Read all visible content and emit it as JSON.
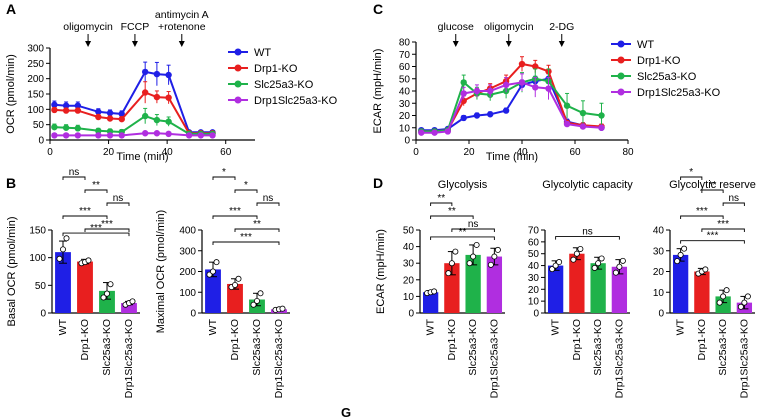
{
  "colors": {
    "WT": "#1f1fe6",
    "Drp1-KO": "#e81f1f",
    "Slc25a3-KO": "#1fb24a",
    "Drp1Slc25a3-KO": "#b02ee0"
  },
  "series_names": [
    "WT",
    "Drp1-KO",
    "Slc25a3-KO",
    "Drp1Slc25a3-KO"
  ],
  "sig": {
    "ns": "ns",
    "s1": "*",
    "s2": "**",
    "s3": "***"
  },
  "chart_data": [
    {
      "id": "A",
      "panel_label": "A",
      "type": "line",
      "ylabel": "OCR (pmol/min)",
      "xlabel": "Time (min)",
      "xlim": [
        0,
        70
      ],
      "ylim": [
        0,
        300
      ],
      "xticks": [
        0,
        20,
        40,
        60
      ],
      "yticks": [
        0,
        50,
        100,
        150,
        200,
        250,
        300
      ],
      "injections": [
        {
          "label": "oligomycin",
          "x": 13
        },
        {
          "label": "FCCP",
          "x": 29
        },
        {
          "label": "antimycin A",
          "label2": "+rotenone",
          "x": 45
        }
      ],
      "x": [
        1.5,
        5.5,
        9.5,
        16.5,
        20.5,
        24.5,
        32.5,
        36.5,
        40.5,
        47.5,
        51.5,
        55.5
      ],
      "series": [
        {
          "name": "WT",
          "values": [
            115,
            112,
            112,
            92,
            88,
            85,
            222,
            215,
            212,
            25,
            25,
            25
          ],
          "err": [
            12,
            12,
            12,
            10,
            10,
            10,
            32,
            38,
            32,
            5,
            5,
            5
          ]
        },
        {
          "name": "Drp1-KO",
          "values": [
            98,
            96,
            96,
            75,
            70,
            68,
            155,
            140,
            138,
            22,
            22,
            22
          ],
          "err": [
            8,
            8,
            8,
            8,
            8,
            8,
            35,
            20,
            20,
            4,
            4,
            4
          ]
        },
        {
          "name": "Slc25a3-KO",
          "values": [
            42,
            40,
            38,
            30,
            28,
            26,
            78,
            65,
            60,
            20,
            20,
            20
          ],
          "err": [
            10,
            10,
            10,
            8,
            8,
            8,
            25,
            18,
            15,
            4,
            4,
            4
          ]
        },
        {
          "name": "Drp1Slc25a3-KO",
          "values": [
            15,
            15,
            15,
            15,
            15,
            15,
            22,
            22,
            20,
            15,
            15,
            15
          ],
          "err": [
            4,
            4,
            4,
            4,
            4,
            4,
            5,
            5,
            5,
            3,
            3,
            3
          ]
        }
      ]
    },
    {
      "id": "C",
      "panel_label": "C",
      "type": "line",
      "ylabel": "ECAR (mpH/min)",
      "xlabel": "Time (min)",
      "xlim": [
        0,
        80
      ],
      "ylim": [
        0,
        80
      ],
      "xticks": [
        0,
        20,
        40,
        60,
        80
      ],
      "yticks": [
        0,
        10,
        20,
        30,
        40,
        50,
        60,
        70,
        80
      ],
      "injections": [
        {
          "label": "glucose",
          "x": 15
        },
        {
          "label": "oligomycin",
          "x": 35
        },
        {
          "label": "2-DG",
          "x": 55
        }
      ],
      "x": [
        2,
        7,
        12,
        18,
        23,
        28,
        34,
        40,
        45,
        50,
        57,
        63,
        70
      ],
      "series": [
        {
          "name": "WT",
          "values": [
            8,
            8,
            9,
            18,
            20,
            21,
            24,
            45,
            48,
            50,
            15,
            12,
            10
          ],
          "err": [
            1,
            1,
            1,
            2,
            2,
            2,
            2,
            4,
            4,
            4,
            2,
            2,
            2
          ]
        },
        {
          "name": "Drp1-KO",
          "values": [
            7,
            7,
            8,
            32,
            38,
            42,
            48,
            62,
            60,
            56,
            14,
            12,
            11
          ],
          "err": [
            1,
            1,
            1,
            4,
            4,
            4,
            5,
            6,
            5,
            5,
            2,
            2,
            2
          ]
        },
        {
          "name": "Slc25a3-KO",
          "values": [
            7,
            7,
            8,
            47,
            38,
            37,
            40,
            47,
            50,
            48,
            28,
            22,
            20
          ],
          "err": [
            1,
            1,
            1,
            6,
            5,
            5,
            6,
            8,
            8,
            10,
            10,
            10,
            10
          ]
        },
        {
          "name": "Drp1Slc25a3-KO",
          "values": [
            6,
            6,
            7,
            38,
            40,
            40,
            45,
            47,
            43,
            42,
            13,
            11,
            10
          ],
          "err": [
            1,
            1,
            1,
            5,
            5,
            5,
            6,
            7,
            8,
            9,
            2,
            2,
            2
          ]
        }
      ]
    },
    {
      "id": "B1",
      "panel_label": "B",
      "type": "bar",
      "ylabel": "Basal OCR (pmol/min)",
      "ylim": [
        0,
        150
      ],
      "yticks": [
        0,
        50,
        100,
        150
      ],
      "categories": [
        "WT",
        "Drp1-KO",
        "Slc25a3-KO",
        "Drp1Slc25a3-KO"
      ],
      "values": [
        110,
        93,
        40,
        18
      ],
      "err": [
        20,
        4,
        15,
        3
      ],
      "points": [
        [
          98,
          115,
          135
        ],
        [
          90,
          92,
          95
        ],
        [
          28,
          35,
          52
        ],
        [
          15,
          18,
          21
        ]
      ],
      "comparisons": [
        {
          "from": 0,
          "to": 1,
          "label": "ns"
        },
        {
          "from": 0,
          "to": 2,
          "label": "***"
        },
        {
          "from": 0,
          "to": 3,
          "label": "***"
        },
        {
          "from": 1,
          "to": 2,
          "label": "**"
        },
        {
          "from": 1,
          "to": 3,
          "label": "***"
        },
        {
          "from": 2,
          "to": 3,
          "label": "ns"
        }
      ]
    },
    {
      "id": "B2",
      "panel_label": "",
      "type": "bar",
      "ylabel": "Maximal OCR (pmol/min)",
      "ylim": [
        0,
        400
      ],
      "yticks": [
        0,
        100,
        200,
        300,
        400
      ],
      "categories": [
        "WT",
        "Drp1-KO",
        "Slc25a3-KO",
        "Drp1Slc25a3-KO"
      ],
      "values": [
        210,
        140,
        65,
        18
      ],
      "err": [
        35,
        25,
        30,
        4
      ],
      "points": [
        [
          185,
          200,
          245
        ],
        [
          125,
          135,
          165
        ],
        [
          40,
          58,
          95
        ],
        [
          15,
          18,
          21
        ]
      ],
      "comparisons": [
        {
          "from": 0,
          "to": 1,
          "label": "*"
        },
        {
          "from": 0,
          "to": 2,
          "label": "***"
        },
        {
          "from": 0,
          "to": 3,
          "label": "***"
        },
        {
          "from": 1,
          "to": 2,
          "label": "*"
        },
        {
          "from": 1,
          "to": 3,
          "label": "**"
        },
        {
          "from": 2,
          "to": 3,
          "label": "ns"
        }
      ]
    },
    {
      "id": "D1",
      "panel_label": "D",
      "type": "bar",
      "title": "Glycolysis",
      "ylabel": "ECAR (mpH/min)",
      "ylim": [
        0,
        50
      ],
      "yticks": [
        0,
        10,
        20,
        30,
        40,
        50
      ],
      "categories": [
        "WT",
        "Drp1-KO",
        "Slc25a3-KO",
        "Drp1Slc25a3-KO"
      ],
      "values": [
        12.5,
        30,
        35,
        34
      ],
      "err": [
        1,
        7,
        6,
        5
      ],
      "points": [
        [
          12,
          12.5,
          13
        ],
        [
          24,
          30,
          37
        ],
        [
          30,
          34,
          41
        ],
        [
          29,
          34,
          38
        ]
      ],
      "comparisons": [
        {
          "from": 0,
          "to": 1,
          "label": "**"
        },
        {
          "from": 0,
          "to": 2,
          "label": "**"
        },
        {
          "from": 0,
          "to": 3,
          "label": "**"
        },
        {
          "from": 1,
          "to": 3,
          "label": "ns"
        }
      ]
    },
    {
      "id": "D2",
      "panel_label": "",
      "type": "bar",
      "title": "Glycolytic capacity",
      "ylabel": "",
      "ylim": [
        0,
        70
      ],
      "yticks": [
        0,
        10,
        20,
        30,
        40,
        50,
        60,
        70
      ],
      "categories": [
        "WT",
        "Drp1-KO",
        "Slc25a3-KO",
        "Drp1Slc25a3-KO"
      ],
      "values": [
        40,
        50,
        42,
        39
      ],
      "err": [
        4,
        5,
        5,
        6
      ],
      "points": [
        [
          37,
          40,
          43
        ],
        [
          45,
          50,
          54
        ],
        [
          38,
          42,
          46
        ],
        [
          34,
          39,
          44
        ]
      ],
      "comparisons": [
        {
          "from": 0,
          "to": 3,
          "label": "ns"
        }
      ]
    },
    {
      "id": "D3",
      "panel_label": "",
      "type": "bar",
      "title": "Glycolytic reserve",
      "ylabel": "",
      "ylim": [
        0,
        40
      ],
      "yticks": [
        0,
        10,
        20,
        30,
        40
      ],
      "categories": [
        "WT",
        "Drp1-KO",
        "Slc25a3-KO",
        "Drp1Slc25a3-KO"
      ],
      "values": [
        28,
        20,
        8,
        5
      ],
      "err": [
        3,
        1.5,
        3,
        3
      ],
      "points": [
        [
          25,
          28,
          31
        ],
        [
          19,
          20,
          21
        ],
        [
          5,
          8,
          11
        ],
        [
          3,
          5,
          8
        ]
      ],
      "comparisons": [
        {
          "from": 0,
          "to": 1,
          "label": "*"
        },
        {
          "from": 0,
          "to": 2,
          "label": "***"
        },
        {
          "from": 0,
          "to": 3,
          "label": "***"
        },
        {
          "from": 1,
          "to": 2,
          "label": "**"
        },
        {
          "from": 1,
          "to": 3,
          "label": "***"
        },
        {
          "from": 2,
          "to": 3,
          "label": "ns"
        }
      ]
    }
  ],
  "footer_label": "G"
}
